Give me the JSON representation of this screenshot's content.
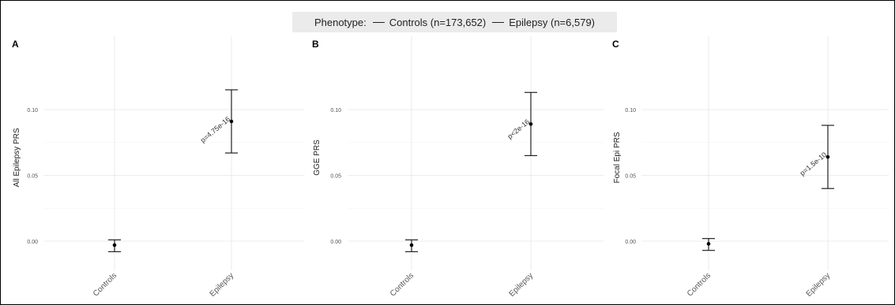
{
  "legend": {
    "label": "Phenotype:",
    "entries": [
      "Controls (n=173,652)",
      "Epilepsy (n=6,579)"
    ]
  },
  "chart_data": [
    {
      "type": "errorbar",
      "panel": "A",
      "ylabel": "All Epilepsy PRS",
      "categories": [
        "Controls",
        "Epilepsy"
      ],
      "values": [
        -0.003,
        0.091
      ],
      "lower": [
        -0.008,
        0.067
      ],
      "upper": [
        0.001,
        0.115
      ],
      "annotation": "p=4.75e-16",
      "yticks": [
        "0.00",
        "0.05",
        "0.10"
      ],
      "ylim": [
        -0.011,
        0.12
      ],
      "grid": true
    },
    {
      "type": "errorbar",
      "panel": "B",
      "ylabel": "GGE PRS",
      "categories": [
        "Controls",
        "Epilepsy"
      ],
      "values": [
        -0.003,
        0.089
      ],
      "lower": [
        -0.008,
        0.065
      ],
      "upper": [
        0.001,
        0.113
      ],
      "annotation": "p<2e-16",
      "yticks": [
        "0.00",
        "0.05",
        "0.10"
      ],
      "ylim": [
        -0.011,
        0.12
      ],
      "grid": true
    },
    {
      "type": "errorbar",
      "panel": "C",
      "ylabel": "Focal Epi PRS",
      "categories": [
        "Controls",
        "Epilepsy"
      ],
      "values": [
        -0.002,
        0.064
      ],
      "lower": [
        -0.007,
        0.04
      ],
      "upper": [
        0.002,
        0.088
      ],
      "annotation": "p=1.5e-10",
      "yticks": [
        "0.00",
        "0.05",
        "0.10"
      ],
      "ylim": [
        -0.011,
        0.12
      ],
      "grid": true
    }
  ]
}
